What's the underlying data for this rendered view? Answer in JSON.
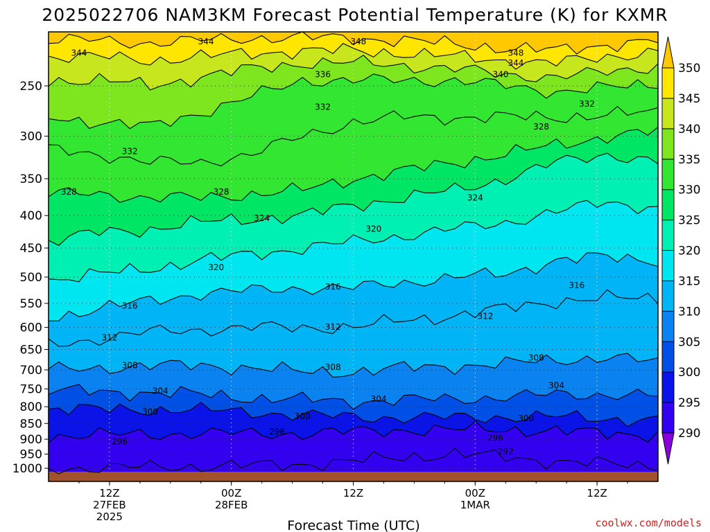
{
  "chart_data": {
    "type": "heatmap",
    "title": "2025022706 NAM3KM Forecast Potential Temperature (K) for KXMR",
    "xlabel": "Forecast Time (UTC)",
    "ylabel": "",
    "y_levels": [
      250,
      300,
      350,
      400,
      450,
      500,
      550,
      600,
      650,
      700,
      750,
      800,
      850,
      900,
      950,
      1000
    ],
    "y_tick_labels": [
      "250",
      "300",
      "350",
      "400",
      "450",
      "500",
      "550",
      "600",
      "650",
      "700",
      "750",
      "800",
      "850",
      "900",
      "950",
      "1000"
    ],
    "y_range": [
      1010,
      205
    ],
    "x_range_hours": [
      6,
      66
    ],
    "x_ticks": [
      {
        "hour": 12,
        "lines": [
          "12Z",
          "27FEB",
          "2025"
        ]
      },
      {
        "hour": 24,
        "lines": [
          "00Z",
          "28FEB"
        ]
      },
      {
        "hour": 36,
        "lines": [
          "12Z"
        ]
      },
      {
        "hour": 48,
        "lines": [
          "00Z",
          "1MAR"
        ]
      },
      {
        "hour": 60,
        "lines": [
          "12Z"
        ]
      }
    ],
    "colorbar": {
      "labels": [
        "290",
        "295",
        "300",
        "305",
        "310",
        "315",
        "320",
        "325",
        "330",
        "335",
        "340",
        "345",
        "350"
      ],
      "levels": [
        290,
        295,
        300,
        305,
        310,
        315,
        320,
        325,
        330,
        335,
        340,
        345,
        350
      ],
      "colors": [
        "#8a00dc",
        "#3300f0",
        "#0a14e6",
        "#0050e6",
        "#0a82f0",
        "#00b4f5",
        "#00e6f0",
        "#00f0b4",
        "#00e664",
        "#32e632",
        "#7de61e",
        "#c8e61e",
        "#ffe600",
        "#ffc800"
      ]
    },
    "isentropes": [
      {
        "theta": 292,
        "p_series": [
          1000,
          998,
          996,
          993,
          990,
          985,
          975,
          960,
          950,
          960,
          975,
          985,
          990
        ]
      },
      {
        "theta": 296,
        "p_series": [
          890,
          885,
          885,
          880,
          882,
          882,
          875,
          870,
          870,
          868,
          875,
          880,
          885
        ]
      },
      {
        "theta": 300,
        "p_series": [
          806,
          808,
          808,
          810,
          815,
          825,
          830,
          832,
          832,
          830,
          830,
          835,
          840
        ]
      },
      {
        "theta": 304,
        "p_series": [
          755,
          757,
          760,
          765,
          775,
          780,
          785,
          780,
          778,
          772,
          765,
          765,
          770
        ]
      },
      {
        "theta": 308,
        "p_series": [
          700,
          695,
          690,
          688,
          695,
          705,
          705,
          695,
          690,
          685,
          675,
          670,
          680
        ]
      },
      {
        "theta": 312,
        "p_series": [
          640,
          625,
          610,
          605,
          600,
          600,
          600,
          585,
          575,
          560,
          545,
          540,
          540
        ]
      },
      {
        "theta": 316,
        "p_series": [
          580,
          560,
          545,
          530,
          525,
          520,
          520,
          510,
          500,
          495,
          470,
          465,
          470
        ]
      },
      {
        "theta": 320,
        "p_series": [
          505,
          495,
          485,
          470,
          460,
          450,
          440,
          430,
          420,
          410,
          395,
          380,
          390
        ]
      },
      {
        "theta": 324,
        "p_series": [
          440,
          425,
          420,
          410,
          405,
          400,
          385,
          375,
          365,
          350,
          330,
          320,
          330
        ]
      },
      {
        "theta": 328,
        "p_series": [
          370,
          370,
          375,
          375,
          370,
          365,
          350,
          340,
          330,
          320,
          310,
          300,
          295
        ]
      },
      {
        "theta": 332,
        "p_series": [
          315,
          320,
          330,
          330,
          320,
          300,
          285,
          280,
          280,
          280,
          280,
          278,
          275
        ]
      },
      {
        "theta": 336,
        "p_series": [
          280,
          285,
          290,
          275,
          260,
          245,
          245,
          245,
          245,
          250,
          255,
          252,
          248
        ]
      },
      {
        "theta": 340,
        "p_series": [
          245,
          245,
          250,
          242,
          235,
          230,
          230,
          232,
          235,
          240,
          242,
          238,
          232
        ]
      },
      {
        "theta": 344,
        "p_series": [
          225,
          225,
          228,
          225,
          222,
          220,
          220,
          222,
          225,
          228,
          230,
          225,
          220
        ]
      },
      {
        "theta": 348,
        "p_series": [
          212,
          212,
          214,
          212,
          210,
          210,
          210,
          212,
          215,
          218,
          220,
          215,
          212
        ]
      }
    ],
    "contour_labels": [
      {
        "text": "344",
        "hour": 9,
        "p": 222
      },
      {
        "text": "344",
        "hour": 21.5,
        "p": 213
      },
      {
        "text": "348",
        "hour": 36.5,
        "p": 213
      },
      {
        "text": "348",
        "hour": 52,
        "p": 222
      },
      {
        "text": "344",
        "hour": 52,
        "p": 230
      },
      {
        "text": "340",
        "hour": 50.5,
        "p": 240
      },
      {
        "text": "336",
        "hour": 33,
        "p": 240
      },
      {
        "text": "332",
        "hour": 33,
        "p": 270
      },
      {
        "text": "332",
        "hour": 59,
        "p": 267
      },
      {
        "text": "328",
        "hour": 54.5,
        "p": 290
      },
      {
        "text": "332",
        "hour": 14,
        "p": 317
      },
      {
        "text": "328",
        "hour": 8,
        "p": 367
      },
      {
        "text": "328",
        "hour": 23,
        "p": 367
      },
      {
        "text": "324",
        "hour": 48,
        "p": 375
      },
      {
        "text": "324",
        "hour": 27,
        "p": 404
      },
      {
        "text": "320",
        "hour": 38,
        "p": 420
      },
      {
        "text": "320",
        "hour": 22.5,
        "p": 483
      },
      {
        "text": "316",
        "hour": 34,
        "p": 518
      },
      {
        "text": "316",
        "hour": 58,
        "p": 515
      },
      {
        "text": "316",
        "hour": 14,
        "p": 555
      },
      {
        "text": "312",
        "hour": 49,
        "p": 576
      },
      {
        "text": "312",
        "hour": 34,
        "p": 599
      },
      {
        "text": "312",
        "hour": 12,
        "p": 623
      },
      {
        "text": "308",
        "hour": 14,
        "p": 689
      },
      {
        "text": "308",
        "hour": 34,
        "p": 693
      },
      {
        "text": "308",
        "hour": 54,
        "p": 670
      },
      {
        "text": "304",
        "hour": 17,
        "p": 756
      },
      {
        "text": "304",
        "hour": 38.5,
        "p": 778
      },
      {
        "text": "304",
        "hour": 56,
        "p": 741
      },
      {
        "text": "300",
        "hour": 16,
        "p": 815
      },
      {
        "text": "300",
        "hour": 31,
        "p": 828
      },
      {
        "text": "300",
        "hour": 53,
        "p": 835
      },
      {
        "text": "296",
        "hour": 13,
        "p": 908
      },
      {
        "text": "296",
        "hour": 28.5,
        "p": 877
      },
      {
        "text": "296",
        "hour": 50,
        "p": 895
      },
      {
        "text": "292",
        "hour": 51,
        "p": 942
      }
    ],
    "grid": true,
    "ground_color": "#a0522d"
  },
  "credit": "coolwx.com/models"
}
